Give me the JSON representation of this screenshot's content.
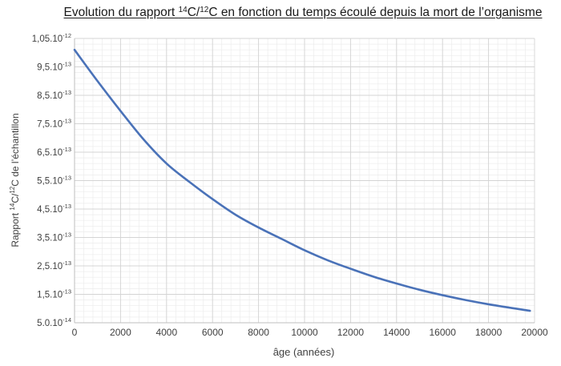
{
  "chart_data": {
    "type": "line",
    "title": {
      "p1": "Evolution du rapport ",
      "sup1": "14",
      "p2": "C/",
      "sup2": "12",
      "p3": "C en fonction du temps écoulé depuis la mort de l’organisme"
    },
    "xlabel": "âge (années)",
    "ylabel": {
      "p1": "Rapport ",
      "sup1": "14",
      "p2": "C/",
      "sup2": "12",
      "p3": "C  de l’échantillon"
    },
    "xlim": [
      0,
      20000
    ],
    "ylim": [
      5e-14,
      1.05e-12
    ],
    "x_ticks": [
      0,
      2000,
      4000,
      6000,
      8000,
      10000,
      12000,
      14000,
      16000,
      18000,
      20000
    ],
    "x_tick_labels": [
      "0",
      "2000",
      "4000",
      "6000",
      "8000",
      "10000",
      "12000",
      "14000",
      "16000",
      "18000",
      "20000"
    ],
    "y_ticks": [
      {
        "value": 1.05e-12,
        "mantissa": "1,05.10",
        "exponent": "-12"
      },
      {
        "value": 9.5e-13,
        "mantissa": "9,5.10",
        "exponent": "-13"
      },
      {
        "value": 8.5e-13,
        "mantissa": "8,5.10",
        "exponent": "-13"
      },
      {
        "value": 7.5e-13,
        "mantissa": "7,5.10",
        "exponent": "-13"
      },
      {
        "value": 6.5e-13,
        "mantissa": "6,5.10",
        "exponent": "-13"
      },
      {
        "value": 5.5e-13,
        "mantissa": "5,5.10",
        "exponent": "-13"
      },
      {
        "value": 4.5e-13,
        "mantissa": "4,5.10",
        "exponent": "-13"
      },
      {
        "value": 3.5e-13,
        "mantissa": "3,5.10",
        "exponent": "-13"
      },
      {
        "value": 2.5e-13,
        "mantissa": "2,5.10",
        "exponent": "-13"
      },
      {
        "value": 1.5e-13,
        "mantissa": "1,5.10",
        "exponent": "-13"
      },
      {
        "value": 5e-14,
        "mantissa": "5.0.10",
        "exponent": "-14"
      }
    ],
    "grid": true,
    "minor_grid": true,
    "legend": "none",
    "series": [
      {
        "color": "#4a72b8",
        "x": [
          0,
          1000,
          2000,
          3000,
          4000,
          5000,
          6000,
          7000,
          8000,
          9000,
          10000,
          11000,
          12000,
          13000,
          14000,
          15000,
          16000,
          17000,
          18000,
          19000,
          19800
        ],
        "y": [
          1.01e-12,
          9e-13,
          7.95e-13,
          6.95e-13,
          6.1e-13,
          5.45e-13,
          4.85e-13,
          4.3e-13,
          3.85e-13,
          3.45e-13,
          3.05e-13,
          2.7e-13,
          2.4e-13,
          2.12e-13,
          1.88e-13,
          1.66e-13,
          1.47e-13,
          1.3e-13,
          1.15e-13,
          1.02e-13,
          9.2e-14
        ]
      }
    ]
  }
}
